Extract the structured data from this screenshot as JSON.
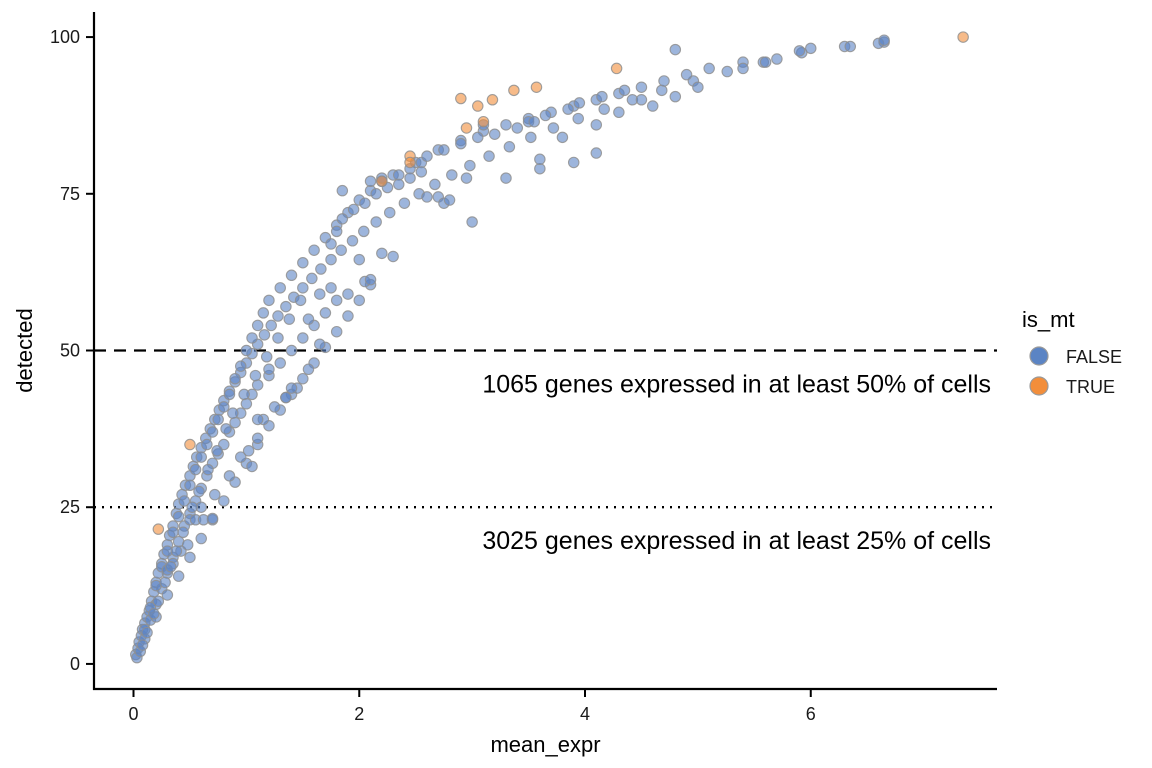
{
  "chart_data": {
    "type": "scatter",
    "xlabel": "mean_expr",
    "ylabel": "detected",
    "xlim": [
      -0.35,
      7.65
    ],
    "ylim": [
      -4,
      104
    ],
    "x_ticks": [
      0,
      2,
      4,
      6
    ],
    "y_ticks": [
      0,
      25,
      50,
      75,
      100
    ],
    "x_tick_labels": [
      "0",
      "2",
      "4",
      "6"
    ],
    "y_tick_labels": [
      "0",
      "25",
      "50",
      "75",
      "100"
    ],
    "grid": false,
    "legend": {
      "title": "is_mt",
      "placement": "right",
      "entries": [
        {
          "label": "FALSE",
          "color": "#5b84c4"
        },
        {
          "label": "TRUE",
          "color": "#f28e3b"
        }
      ]
    },
    "reference_lines": [
      {
        "y": 50,
        "style": "dashed",
        "annotation": "1065 genes expressed in at least 50% of cells"
      },
      {
        "y": 25,
        "style": "dotted",
        "annotation": "3025 genes expressed in at least 25% of cells"
      }
    ],
    "series": [
      {
        "name": "FALSE",
        "color": "#5b84c4",
        "points": [
          [
            0.02,
            1.5
          ],
          [
            0.04,
            2.5
          ],
          [
            0.05,
            3.5
          ],
          [
            0.07,
            4.5
          ],
          [
            0.08,
            5.5
          ],
          [
            0.1,
            6.5
          ],
          [
            0.12,
            7.5
          ],
          [
            0.14,
            8.5
          ],
          [
            0.16,
            10
          ],
          [
            0.18,
            11.5
          ],
          [
            0.2,
            13
          ],
          [
            0.22,
            14.5
          ],
          [
            0.25,
            16
          ],
          [
            0.27,
            17.5
          ],
          [
            0.3,
            19
          ],
          [
            0.32,
            20.5
          ],
          [
            0.35,
            22
          ],
          [
            0.38,
            24
          ],
          [
            0.4,
            25.5
          ],
          [
            0.43,
            27
          ],
          [
            0.46,
            28.5
          ],
          [
            0.5,
            30
          ],
          [
            0.53,
            31.5
          ],
          [
            0.56,
            33
          ],
          [
            0.6,
            34.5
          ],
          [
            0.64,
            36
          ],
          [
            0.68,
            37.5
          ],
          [
            0.72,
            39
          ],
          [
            0.76,
            40.5
          ],
          [
            0.8,
            42
          ],
          [
            0.85,
            43.5
          ],
          [
            0.9,
            45
          ],
          [
            0.95,
            46.5
          ],
          [
            1.0,
            48
          ],
          [
            1.05,
            49.5
          ],
          [
            1.1,
            51
          ],
          [
            1.16,
            52.5
          ],
          [
            1.22,
            54
          ],
          [
            1.28,
            55.5
          ],
          [
            1.35,
            57
          ],
          [
            1.42,
            58.5
          ],
          [
            1.5,
            60
          ],
          [
            1.58,
            61.5
          ],
          [
            1.66,
            63
          ],
          [
            1.75,
            64.5
          ],
          [
            1.84,
            66
          ],
          [
            1.94,
            67.5
          ],
          [
            2.04,
            69
          ],
          [
            2.15,
            70.5
          ],
          [
            2.27,
            72
          ],
          [
            2.4,
            73.5
          ],
          [
            2.53,
            75
          ],
          [
            2.67,
            76.5
          ],
          [
            2.82,
            78
          ],
          [
            2.98,
            79.5
          ],
          [
            3.15,
            81
          ],
          [
            3.33,
            82.5
          ],
          [
            3.52,
            84
          ],
          [
            3.72,
            85.5
          ],
          [
            3.94,
            87
          ],
          [
            4.17,
            88.5
          ],
          [
            4.42,
            90
          ],
          [
            4.68,
            91.5
          ],
          [
            4.96,
            93
          ],
          [
            5.26,
            94.5
          ],
          [
            5.58,
            96
          ],
          [
            5.92,
            97.5
          ],
          [
            6.3,
            98.5
          ],
          [
            6.65,
            99.2
          ],
          [
            0.03,
            1.0
          ],
          [
            0.06,
            2.0
          ],
          [
            0.1,
            4.0
          ],
          [
            0.15,
            7.0
          ],
          [
            0.2,
            9.5
          ],
          [
            0.25,
            12
          ],
          [
            0.3,
            14.5
          ],
          [
            0.35,
            17
          ],
          [
            0.4,
            19.5
          ],
          [
            0.45,
            22
          ],
          [
            0.5,
            24
          ],
          [
            0.55,
            26
          ],
          [
            0.6,
            28
          ],
          [
            0.65,
            30
          ],
          [
            0.7,
            32
          ],
          [
            0.75,
            33.5
          ],
          [
            0.8,
            35
          ],
          [
            0.85,
            37
          ],
          [
            0.9,
            38.5
          ],
          [
            0.95,
            40
          ],
          [
            1.0,
            41.5
          ],
          [
            1.05,
            43
          ],
          [
            1.1,
            44.5
          ],
          [
            1.2,
            46
          ],
          [
            1.3,
            48
          ],
          [
            1.4,
            50
          ],
          [
            1.5,
            52
          ],
          [
            1.6,
            54
          ],
          [
            1.7,
            56
          ],
          [
            1.8,
            58
          ],
          [
            0.1,
            5.5
          ],
          [
            0.15,
            9
          ],
          [
            0.2,
            12.5
          ],
          [
            0.25,
            15.5
          ],
          [
            0.3,
            18
          ],
          [
            0.35,
            21
          ],
          [
            0.4,
            23.5
          ],
          [
            0.45,
            26
          ],
          [
            0.5,
            28.5
          ],
          [
            0.55,
            31
          ],
          [
            0.6,
            33
          ],
          [
            0.65,
            35
          ],
          [
            0.7,
            37
          ],
          [
            0.75,
            39
          ],
          [
            0.8,
            41
          ],
          [
            0.85,
            43
          ],
          [
            0.9,
            45.5
          ],
          [
            0.95,
            47.5
          ],
          [
            1.0,
            50
          ],
          [
            1.05,
            52
          ],
          [
            1.1,
            54
          ],
          [
            1.15,
            56
          ],
          [
            1.2,
            58
          ],
          [
            1.3,
            60
          ],
          [
            1.4,
            62
          ],
          [
            1.5,
            64
          ],
          [
            1.6,
            66
          ],
          [
            1.7,
            68
          ],
          [
            1.8,
            70
          ],
          [
            1.9,
            72
          ],
          [
            2.0,
            74
          ],
          [
            2.1,
            75.5
          ],
          [
            2.2,
            77
          ],
          [
            2.3,
            78
          ],
          [
            2.5,
            80
          ],
          [
            2.7,
            82
          ],
          [
            2.9,
            83.5
          ],
          [
            3.1,
            85
          ],
          [
            3.3,
            86
          ],
          [
            3.5,
            87
          ],
          [
            3.7,
            88
          ],
          [
            3.9,
            89
          ],
          [
            4.1,
            90
          ],
          [
            4.3,
            91
          ],
          [
            4.5,
            92
          ],
          [
            4.7,
            93
          ],
          [
            4.9,
            94
          ],
          [
            5.1,
            95
          ],
          [
            5.4,
            96
          ],
          [
            5.7,
            96.5
          ],
          [
            0.2,
            7.5
          ],
          [
            0.3,
            11
          ],
          [
            0.4,
            14
          ],
          [
            0.5,
            17
          ],
          [
            0.6,
            20
          ],
          [
            0.7,
            23
          ],
          [
            0.8,
            26
          ],
          [
            0.9,
            29
          ],
          [
            1.0,
            32
          ],
          [
            1.1,
            35
          ],
          [
            1.2,
            38
          ],
          [
            1.3,
            40.5
          ],
          [
            1.4,
            43
          ],
          [
            1.5,
            45.5
          ],
          [
            1.6,
            48
          ],
          [
            1.7,
            50.5
          ],
          [
            1.8,
            53
          ],
          [
            1.9,
            55.5
          ],
          [
            2.0,
            58
          ],
          [
            2.1,
            60.5
          ],
          [
            0.5,
            23
          ],
          [
            0.55,
            23
          ],
          [
            0.62,
            23
          ],
          [
            0.7,
            23.2
          ],
          [
            0.3,
            15
          ],
          [
            0.35,
            16
          ],
          [
            0.42,
            18
          ],
          [
            0.48,
            19
          ],
          [
            0.6,
            25
          ],
          [
            0.72,
            27
          ],
          [
            0.85,
            30
          ],
          [
            0.95,
            33
          ],
          [
            1.02,
            34
          ],
          [
            1.1,
            36
          ],
          [
            1.15,
            39
          ],
          [
            1.25,
            41
          ],
          [
            1.35,
            42.5
          ],
          [
            1.45,
            44
          ],
          [
            1.55,
            47
          ],
          [
            1.65,
            51
          ],
          [
            1.05,
            31.5
          ],
          [
            1.1,
            39
          ],
          [
            1.4,
            44
          ],
          [
            1.35,
            42.5
          ],
          [
            1.2,
            47
          ],
          [
            1.55,
            55
          ],
          [
            1.65,
            59
          ],
          [
            1.75,
            60
          ],
          [
            1.9,
            59
          ],
          [
            2.05,
            61
          ],
          [
            2.1,
            61.3
          ],
          [
            2.2,
            65.5
          ],
          [
            2.3,
            65
          ],
          [
            2.0,
            64.5
          ],
          [
            2.6,
            74.5
          ],
          [
            2.7,
            74.5
          ],
          [
            2.75,
            73.5
          ],
          [
            2.8,
            74
          ],
          [
            3.0,
            70.5
          ],
          [
            3.3,
            77.5
          ],
          [
            2.95,
            77.5
          ],
          [
            3.6,
            79
          ],
          [
            3.6,
            80.5
          ],
          [
            3.9,
            80
          ],
          [
            4.1,
            81.5
          ],
          [
            3.1,
            86
          ],
          [
            3.5,
            86.5
          ],
          [
            3.8,
            84
          ],
          [
            4.1,
            86
          ],
          [
            4.3,
            88
          ],
          [
            4.5,
            90
          ],
          [
            4.6,
            89
          ],
          [
            4.8,
            90.5
          ],
          [
            5.0,
            92
          ],
          [
            4.8,
            98
          ],
          [
            5.4,
            95
          ],
          [
            5.6,
            96
          ],
          [
            5.9,
            97.8
          ],
          [
            6.0,
            98.2
          ],
          [
            6.35,
            98.5
          ],
          [
            6.6,
            99
          ],
          [
            6.65,
            99.5
          ],
          [
            1.85,
            75.5
          ],
          [
            2.1,
            77
          ],
          [
            2.2,
            77.5
          ],
          [
            2.35,
            78
          ],
          [
            2.45,
            79
          ],
          [
            2.55,
            80
          ],
          [
            2.6,
            81
          ],
          [
            2.75,
            82
          ],
          [
            2.9,
            83
          ],
          [
            3.05,
            84
          ],
          [
            3.2,
            84.5
          ],
          [
            3.4,
            85.5
          ],
          [
            3.55,
            86.5
          ],
          [
            3.65,
            87.5
          ],
          [
            3.85,
            88.5
          ],
          [
            3.95,
            89.5
          ],
          [
            4.15,
            90.5
          ],
          [
            4.35,
            91.5
          ],
          [
            1.75,
            67
          ],
          [
            1.8,
            69
          ],
          [
            1.85,
            71
          ],
          [
            1.95,
            72.5
          ],
          [
            2.05,
            73.5
          ],
          [
            2.15,
            75
          ],
          [
            2.25,
            76
          ],
          [
            2.35,
            76.5
          ],
          [
            2.45,
            77.5
          ],
          [
            2.55,
            78.5
          ],
          [
            0.08,
            3
          ],
          [
            0.12,
            5
          ],
          [
            0.18,
            8
          ],
          [
            0.22,
            10
          ],
          [
            0.28,
            13
          ],
          [
            0.33,
            15.5
          ],
          [
            0.38,
            18
          ],
          [
            0.44,
            21
          ],
          [
            0.52,
            25
          ],
          [
            0.58,
            27.5
          ],
          [
            0.66,
            31
          ],
          [
            0.74,
            34
          ],
          [
            0.82,
            37.5
          ],
          [
            0.88,
            40
          ],
          [
            0.98,
            43
          ],
          [
            1.08,
            46
          ],
          [
            1.18,
            49
          ],
          [
            1.28,
            52
          ],
          [
            1.38,
            55
          ],
          [
            1.48,
            58
          ]
        ]
      },
      {
        "name": "TRUE",
        "color": "#f28e3b",
        "points": [
          [
            7.35,
            100
          ],
          [
            4.28,
            95
          ],
          [
            3.57,
            92
          ],
          [
            3.37,
            91.5
          ],
          [
            3.18,
            90
          ],
          [
            2.9,
            90.2
          ],
          [
            3.05,
            89
          ],
          [
            3.1,
            86.5
          ],
          [
            2.95,
            85.5
          ],
          [
            2.2,
            77
          ],
          [
            2.45,
            81
          ],
          [
            2.45,
            80
          ],
          [
            0.5,
            35
          ],
          [
            0.22,
            21.5
          ]
        ]
      }
    ]
  }
}
